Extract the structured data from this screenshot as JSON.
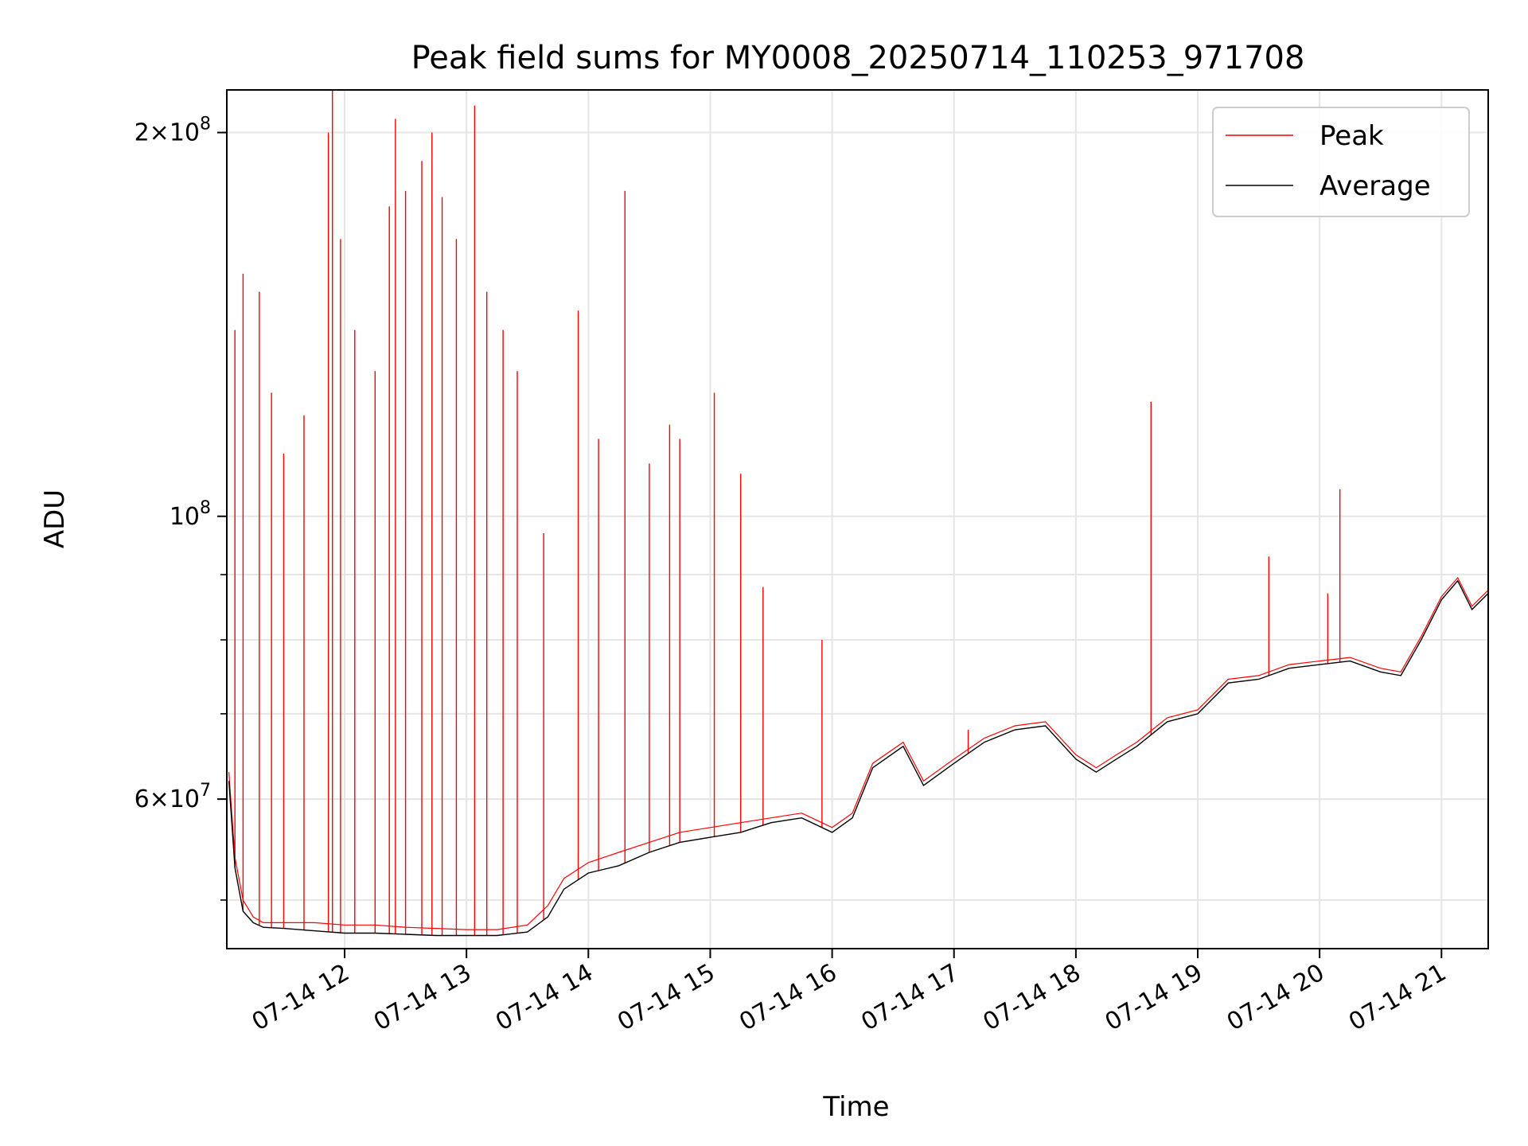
{
  "chart_data": {
    "type": "line",
    "title": "Peak field sums for MY0008_20250714_110253_971708",
    "xlabel": "Time",
    "ylabel": "ADU",
    "y_scale": "log",
    "x_range": [
      "2025-07-14 11:02",
      "2025-07-14 21:23"
    ],
    "ylim": [
      45800000,
      216000000
    ],
    "grid": true,
    "legend": "top-right",
    "x_tick_labels": [
      "07-14 12",
      "07-14 13",
      "07-14 14",
      "07-14 15",
      "07-14 16",
      "07-14 17",
      "07-14 18",
      "07-14 19",
      "07-14 20",
      "07-14 21"
    ],
    "x_tick_times": [
      "2025-07-14 12:00",
      "2025-07-14 13:00",
      "2025-07-14 14:00",
      "2025-07-14 15:00",
      "2025-07-14 16:00",
      "2025-07-14 17:00",
      "2025-07-14 18:00",
      "2025-07-14 19:00",
      "2025-07-14 20:00",
      "2025-07-14 21:00"
    ],
    "y_tick_labels": [
      {
        "value": 60000000,
        "mantissa": "6",
        "exponent": "7"
      },
      {
        "value": 100000000,
        "mantissa": "",
        "exponent": "8"
      },
      {
        "value": 200000000,
        "mantissa": "2",
        "exponent": "8"
      }
    ],
    "series": [
      {
        "name": "Average",
        "color": "#000000",
        "x": [
          "2025-07-14 11:03",
          "2025-07-14 11:06",
          "2025-07-14 11:10",
          "2025-07-14 11:15",
          "2025-07-14 11:20",
          "2025-07-14 11:30",
          "2025-07-14 11:45",
          "2025-07-14 12:00",
          "2025-07-14 12:15",
          "2025-07-14 12:30",
          "2025-07-14 12:45",
          "2025-07-14 13:00",
          "2025-07-14 13:15",
          "2025-07-14 13:30",
          "2025-07-14 13:40",
          "2025-07-14 13:48",
          "2025-07-14 14:00",
          "2025-07-14 14:15",
          "2025-07-14 14:30",
          "2025-07-14 14:45",
          "2025-07-14 15:00",
          "2025-07-14 15:15",
          "2025-07-14 15:30",
          "2025-07-14 15:45",
          "2025-07-14 16:00",
          "2025-07-14 16:10",
          "2025-07-14 16:20",
          "2025-07-14 16:35",
          "2025-07-14 16:45",
          "2025-07-14 17:00",
          "2025-07-14 17:15",
          "2025-07-14 17:30",
          "2025-07-14 17:45",
          "2025-07-14 18:00",
          "2025-07-14 18:10",
          "2025-07-14 18:20",
          "2025-07-14 18:30",
          "2025-07-14 18:45",
          "2025-07-14 19:00",
          "2025-07-14 19:15",
          "2025-07-14 19:30",
          "2025-07-14 19:45",
          "2025-07-14 20:00",
          "2025-07-14 20:15",
          "2025-07-14 20:30",
          "2025-07-14 20:40",
          "2025-07-14 20:50",
          "2025-07-14 21:00",
          "2025-07-14 21:08",
          "2025-07-14 21:15",
          "2025-07-14 21:23"
        ],
        "y": [
          62000000,
          53000000,
          49000000,
          48000000,
          47600000,
          47500000,
          47300000,
          47100000,
          47100000,
          47000000,
          46900000,
          46900000,
          46900000,
          47200000,
          48500000,
          51000000,
          52500000,
          53200000,
          54500000,
          55500000,
          56000000,
          56500000,
          57500000,
          58000000,
          56500000,
          58000000,
          63500000,
          66000000,
          61500000,
          64000000,
          66500000,
          68000000,
          68500000,
          64500000,
          63000000,
          64500000,
          66000000,
          69000000,
          70000000,
          74000000,
          74500000,
          76000000,
          76500000,
          77000000,
          75500000,
          75000000,
          80000000,
          86000000,
          89000000,
          84500000,
          87000000
        ]
      },
      {
        "name": "Peak",
        "color": "#ff0000",
        "x": [
          "2025-07-14 11:03",
          "2025-07-14 11:06",
          "2025-07-14 11:10",
          "2025-07-14 11:15",
          "2025-07-14 11:20",
          "2025-07-14 11:30",
          "2025-07-14 11:45",
          "2025-07-14 12:00",
          "2025-07-14 12:15",
          "2025-07-14 12:30",
          "2025-07-14 12:45",
          "2025-07-14 13:00",
          "2025-07-14 13:15",
          "2025-07-14 13:30",
          "2025-07-14 13:40",
          "2025-07-14 13:48",
          "2025-07-14 14:00",
          "2025-07-14 14:15",
          "2025-07-14 14:30",
          "2025-07-14 14:45",
          "2025-07-14 15:00",
          "2025-07-14 15:15",
          "2025-07-14 15:30",
          "2025-07-14 15:45",
          "2025-07-14 16:00",
          "2025-07-14 16:10",
          "2025-07-14 16:20",
          "2025-07-14 16:35",
          "2025-07-14 16:45",
          "2025-07-14 17:00",
          "2025-07-14 17:15",
          "2025-07-14 17:30",
          "2025-07-14 17:45",
          "2025-07-14 18:00",
          "2025-07-14 18:10",
          "2025-07-14 18:20",
          "2025-07-14 18:30",
          "2025-07-14 18:45",
          "2025-07-14 19:00",
          "2025-07-14 19:15",
          "2025-07-14 19:30",
          "2025-07-14 19:45",
          "2025-07-14 20:00",
          "2025-07-14 20:15",
          "2025-07-14 20:30",
          "2025-07-14 20:40",
          "2025-07-14 20:50",
          "2025-07-14 21:00",
          "2025-07-14 21:08",
          "2025-07-14 21:15",
          "2025-07-14 21:23"
        ],
        "y": [
          63000000,
          54000000,
          50000000,
          48500000,
          48000000,
          48000000,
          48000000,
          47800000,
          47800000,
          47600000,
          47500000,
          47400000,
          47400000,
          47800000,
          49500000,
          52000000,
          53500000,
          54500000,
          55500000,
          56500000,
          57000000,
          57500000,
          58000000,
          58500000,
          57000000,
          58500000,
          64000000,
          66500000,
          62000000,
          64500000,
          67000000,
          68500000,
          69000000,
          65000000,
          63500000,
          65000000,
          66500000,
          69500000,
          70500000,
          74500000,
          75000000,
          76500000,
          77000000,
          77500000,
          76000000,
          75500000,
          80500000,
          86500000,
          89500000,
          85000000,
          87500000
        ],
        "spikes": [
          {
            "x": "2025-07-14 11:06",
            "y": 140000000
          },
          {
            "x": "2025-07-14 11:10",
            "y": 155000000
          },
          {
            "x": "2025-07-14 11:18",
            "y": 150000000
          },
          {
            "x": "2025-07-14 11:24",
            "y": 125000000
          },
          {
            "x": "2025-07-14 11:30",
            "y": 112000000
          },
          {
            "x": "2025-07-14 11:40",
            "y": 120000000
          },
          {
            "x": "2025-07-14 11:52",
            "y": 200000000
          },
          {
            "x": "2025-07-14 11:54",
            "y": 218000000
          },
          {
            "x": "2025-07-14 11:58",
            "y": 165000000
          },
          {
            "x": "2025-07-14 12:05",
            "y": 140000000
          },
          {
            "x": "2025-07-14 12:15",
            "y": 130000000
          },
          {
            "x": "2025-07-14 12:22",
            "y": 175000000
          },
          {
            "x": "2025-07-14 12:25",
            "y": 205000000
          },
          {
            "x": "2025-07-14 12:30",
            "y": 180000000
          },
          {
            "x": "2025-07-14 12:38",
            "y": 190000000
          },
          {
            "x": "2025-07-14 12:43",
            "y": 200000000
          },
          {
            "x": "2025-07-14 12:48",
            "y": 178000000
          },
          {
            "x": "2025-07-14 12:55",
            "y": 165000000
          },
          {
            "x": "2025-07-14 13:04",
            "y": 210000000
          },
          {
            "x": "2025-07-14 13:10",
            "y": 150000000
          },
          {
            "x": "2025-07-14 13:18",
            "y": 140000000
          },
          {
            "x": "2025-07-14 13:25",
            "y": 130000000
          },
          {
            "x": "2025-07-14 13:38",
            "y": 97000000
          },
          {
            "x": "2025-07-14 13:55",
            "y": 145000000
          },
          {
            "x": "2025-07-14 14:05",
            "y": 115000000
          },
          {
            "x": "2025-07-14 14:18",
            "y": 180000000
          },
          {
            "x": "2025-07-14 14:30",
            "y": 110000000
          },
          {
            "x": "2025-07-14 14:40",
            "y": 118000000
          },
          {
            "x": "2025-07-14 14:45",
            "y": 115000000
          },
          {
            "x": "2025-07-14 15:02",
            "y": 125000000
          },
          {
            "x": "2025-07-14 15:15",
            "y": 108000000
          },
          {
            "x": "2025-07-14 15:26",
            "y": 88000000
          },
          {
            "x": "2025-07-14 15:55",
            "y": 80000000
          },
          {
            "x": "2025-07-14 17:07",
            "y": 68000000
          },
          {
            "x": "2025-07-14 18:37",
            "y": 123000000
          },
          {
            "x": "2025-07-14 19:35",
            "y": 93000000
          },
          {
            "x": "2025-07-14 20:04",
            "y": 87000000
          },
          {
            "x": "2025-07-14 20:10",
            "y": 105000000
          }
        ]
      }
    ]
  }
}
